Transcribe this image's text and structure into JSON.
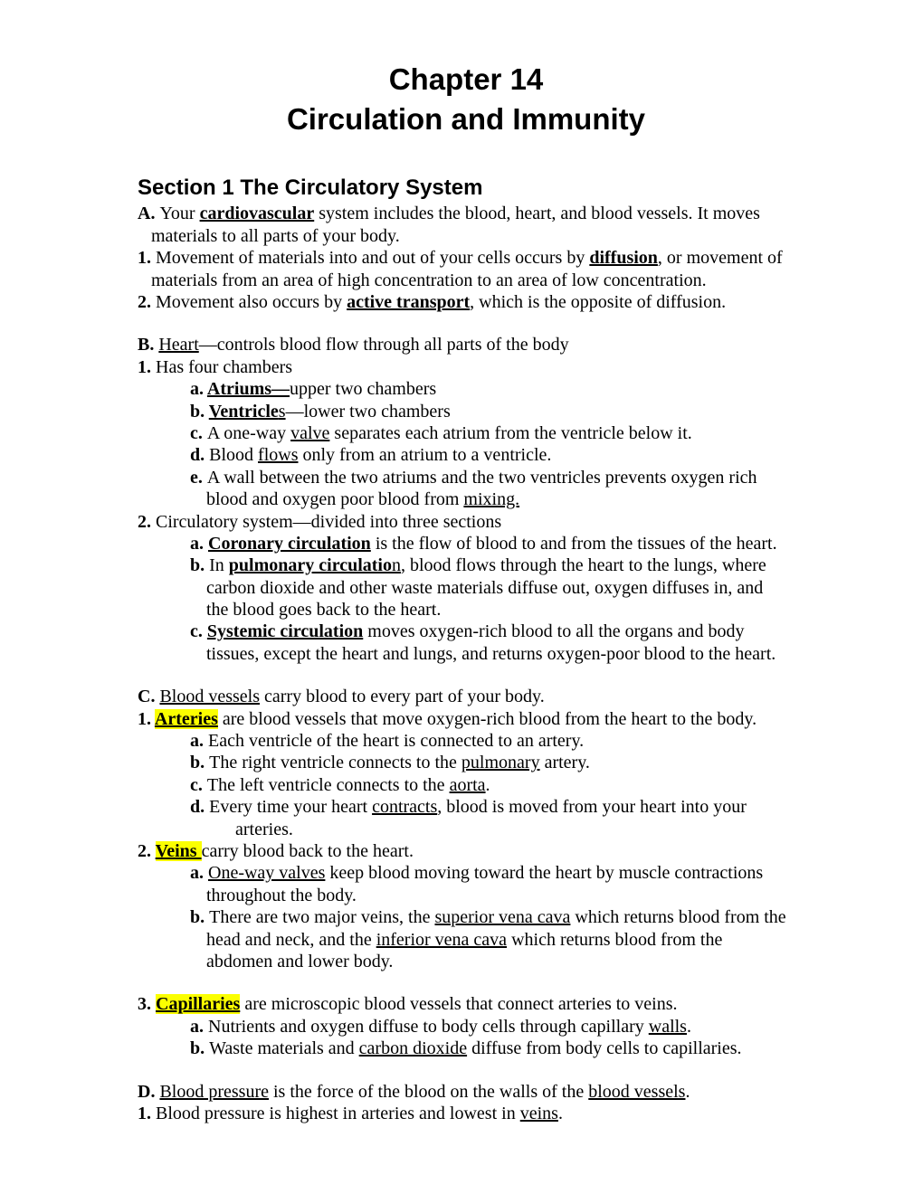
{
  "title_l1": "Chapter 14",
  "title_l2": "Circulation and Immunity",
  "section": "Section 1 The Circulatory System",
  "A_pre": "A. ",
  "A_t1": "Your ",
  "A_kw": "cardiovascular",
  "A_t2": " system includes the blood, heart, and blood vessels. It moves",
  "A_cont": "materials to all parts of your body.",
  "A1_pre": "1. ",
  "A1_t1": "Movement of materials into and out of your cells occurs by ",
  "A1_kw": "diffusion",
  "A1_t2": ", or movement of",
  "A1_cont": "materials from an area of high concentration to an area of low concentration.",
  "A2_pre": "2. ",
  "A2_t1": "Movement also occurs by ",
  "A2_kw": "active transport",
  "A2_t2": ", which is the opposite of diffusion.",
  "B_pre": "B. ",
  "B_kw": "Heart",
  "B_t": "—controls blood flow through all parts of the body",
  "B1_pre": "1. ",
  "B1_t": "Has four chambers",
  "B1a_pre": "a. ",
  "B1a_kw": "Atriums—",
  "B1a_t": "upper two chambers",
  "B1b_pre": "b. ",
  "B1b_kw": "Ventricle",
  "B1b_s": "s",
  "B1b_t": "—lower two chambers",
  "B1c_pre": "c. ",
  "B1c_t1": "A one-way ",
  "B1c_kw": "valve",
  "B1c_t2": " separates each atrium from the ventricle below it.",
  "B1d_pre": "d. ",
  "B1d_t1": "Blood ",
  "B1d_kw": "flows",
  "B1d_t2": " only from an atrium to a ventricle.",
  "B1e_pre": "e. ",
  "B1e_t1": "A wall between the two atriums and the two ventricles prevents oxygen rich",
  "B1e_cont_t1": "blood and oxygen poor blood from ",
  "B1e_kw": "mixing.",
  "B2_pre": "2. ",
  "B2_t": "Circulatory system—divided into three sections",
  "B2a_pre": "a. ",
  "B2a_kw": "Coronary circulation",
  "B2a_t": " is the flow of blood to and from the tissues of the heart.",
  "B2b_pre": "b. ",
  "B2b_t1": "In ",
  "B2b_kw": "pulmonary circulatio",
  "B2b_s": "n",
  "B2b_t2": ", blood flows through the heart to the lungs, where",
  "B2b_c1": "carbon dioxide and other waste materials diffuse out, oxygen diffuses in, and",
  "B2b_c2": "the blood goes back to the heart.",
  "B2c_pre": "c. ",
  "B2c_kw": "Systemic circulation",
  "B2c_t": " moves oxygen-rich blood to all the organs and body",
  "B2c_c1": "tissues, except the heart and lungs, and returns oxygen-poor blood to the heart.",
  "C_pre": "C. ",
  "C_kw": "Blood vessels",
  "C_t": " carry blood to every part of your body.",
  "C1_pre": "1. ",
  "C1_kw": "Arteries",
  "C1_t": " are blood vessels that move oxygen-rich blood from the heart to the body.",
  "C1a_pre": "a. ",
  "C1a_t": "Each ventricle of the heart is connected to an artery.",
  "C1b_pre": "b. ",
  "C1b_t1": "The right ventricle connects to the ",
  "C1b_kw": "pulmonary",
  "C1b_t2": " artery.",
  "C1c_pre": "c. ",
  "C1c_t1": "The left ventricle connects to the ",
  "C1c_kw": "aorta",
  "C1c_t2": ".",
  "C1d_pre": "d. ",
  "C1d_t1": "Every time your heart ",
  "C1d_kw": "contracts",
  "C1d_t2": ", blood is moved from your heart into your",
  "C1d_c": "arteries.",
  "C2_pre": "2. ",
  "C2_kw": "Veins ",
  "C2_t": "carry blood back to the heart.",
  "C2a_pre": "a. ",
  "C2a_kw": "One-way valves",
  "C2a_t": " keep blood moving toward the heart by muscle contractions",
  "C2a_c": "throughout the body.",
  "C2b_pre": "b. ",
  "C2b_t1": "There are two major veins, the ",
  "C2b_kw1": "superior vena cava",
  "C2b_t2": " which returns blood from the",
  "C2b_c1_t1": "head and neck, and the ",
  "C2b_kw2": "inferior vena cava",
  "C2b_c1_t2": " which returns blood from the",
  "C2b_c2": "abdomen and lower body.",
  "C3_pre": "3. ",
  "C3_kw": "Capillaries",
  "C3_t": " are microscopic blood vessels that connect arteries to veins.",
  "C3a_pre": "a. ",
  "C3a_t1": "Nutrients and oxygen diffuse to body cells through capillary ",
  "C3a_kw": "walls",
  "C3a_t2": ".",
  "C3b_pre": "b. ",
  "C3b_t1": "Waste materials and ",
  "C3b_kw": "carbon dioxide",
  "C3b_t2": " diffuse from body cells to capillaries.",
  "D_pre": "D. ",
  "D_kw1": "Blood pressure",
  "D_t1": " is the force of the blood on the walls of the ",
  "D_kw2": "blood vessels",
  "D_t2": ".",
  "D1_pre": "1. ",
  "D1_t1": "Blood pressure is highest in arteries and lowest in ",
  "D1_kw": "veins",
  "D1_t2": "."
}
